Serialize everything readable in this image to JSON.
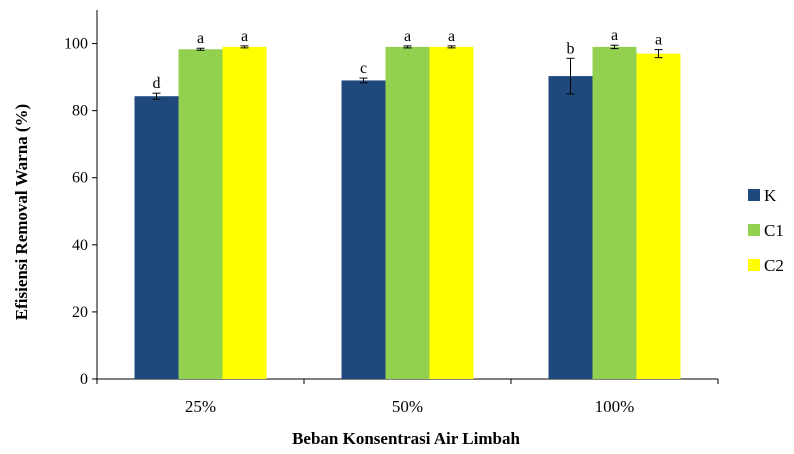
{
  "chart_data": {
    "type": "bar",
    "title": "",
    "xlabel": "Beban Konsentrasi Air Limbah",
    "ylabel": "Efisiensi Removal Warna (%)",
    "categories": [
      "25%",
      "50%",
      "100%"
    ],
    "ylim": [
      0,
      110
    ],
    "yticks": [
      0,
      20,
      40,
      60,
      80,
      100
    ],
    "grid": false,
    "legend_position": "right",
    "series": [
      {
        "name": "K",
        "color": "#1f497d",
        "values": [
          84.3,
          89.0,
          90.3
        ],
        "errors": [
          0.9,
          0.7,
          5.3
        ],
        "labels": [
          "d",
          "c",
          "b"
        ]
      },
      {
        "name": "C1",
        "color": "#92d050",
        "values": [
          98.3,
          99.0,
          99.0
        ],
        "errors": [
          0.3,
          0.3,
          0.5
        ],
        "labels": [
          "a",
          "a",
          "a"
        ]
      },
      {
        "name": "C2",
        "color": "#ffff00",
        "values": [
          99.0,
          99.0,
          97.0
        ],
        "errors": [
          0.3,
          0.3,
          1.2
        ],
        "labels": [
          "a",
          "a",
          "a"
        ]
      }
    ]
  }
}
